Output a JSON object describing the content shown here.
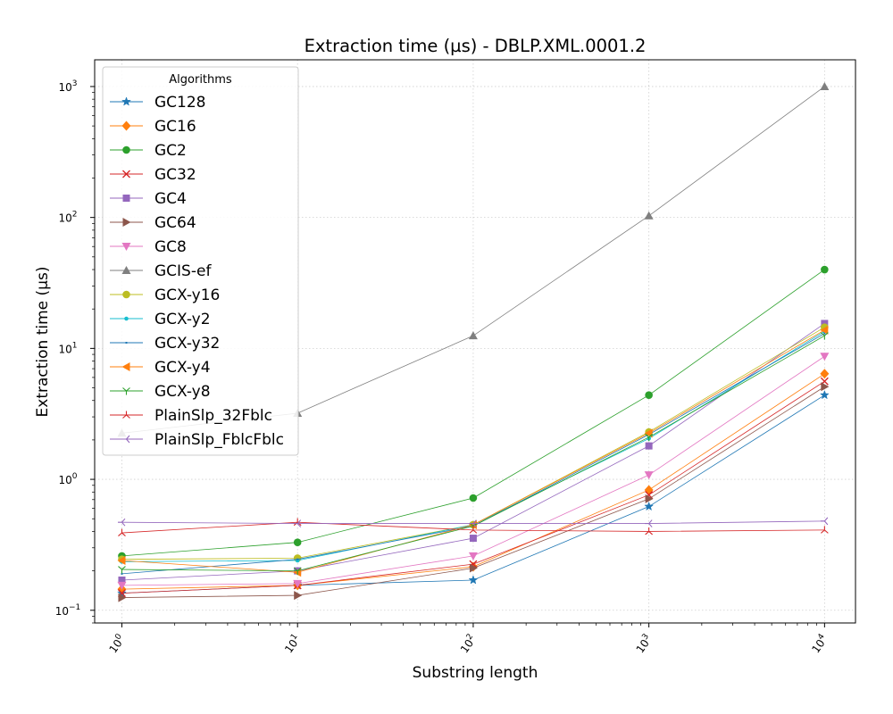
{
  "chart_data": {
    "type": "line",
    "title": "Extraction time (µs) - DBLP.XML.0001.2",
    "xlabel": "Substring length",
    "ylabel": "Extraction time (µs)",
    "xscale": "log",
    "yscale": "log",
    "xlim": [
      0.7,
      15000
    ],
    "ylim": [
      0.08,
      1600
    ],
    "grid": true,
    "legend_title": "Algorithms",
    "legend_position": "top-left",
    "x": [
      1,
      10,
      100,
      1000,
      10000
    ],
    "x_ticks": [
      {
        "value": 1,
        "base": "10",
        "exp": "0"
      },
      {
        "value": 10,
        "base": "10",
        "exp": "1"
      },
      {
        "value": 100,
        "base": "10",
        "exp": "2"
      },
      {
        "value": 1000,
        "base": "10",
        "exp": "3"
      },
      {
        "value": 10000,
        "base": "10",
        "exp": "4"
      }
    ],
    "y_ticks": [
      {
        "value": 0.1,
        "base": "10",
        "exp": "−1"
      },
      {
        "value": 1,
        "base": "10",
        "exp": "0"
      },
      {
        "value": 10,
        "base": "10",
        "exp": "1"
      },
      {
        "value": 100,
        "base": "10",
        "exp": "2"
      },
      {
        "value": 1000,
        "base": "10",
        "exp": "3"
      }
    ],
    "series": [
      {
        "name": "GC128",
        "color": "#1f77b4",
        "marker": "star",
        "values": [
          0.135,
          0.155,
          0.17,
          0.62,
          4.4
        ]
      },
      {
        "name": "GC16",
        "color": "#ff7f0e",
        "marker": "diamond",
        "values": [
          0.145,
          0.155,
          0.215,
          0.83,
          6.4
        ]
      },
      {
        "name": "GC2",
        "color": "#2ca02c",
        "marker": "circle",
        "values": [
          0.26,
          0.33,
          0.72,
          4.4,
          40
        ]
      },
      {
        "name": "GC32",
        "color": "#d62728",
        "marker": "x",
        "values": [
          0.135,
          0.155,
          0.225,
          0.76,
          5.6
        ]
      },
      {
        "name": "GC4",
        "color": "#9467bd",
        "marker": "square",
        "values": [
          0.17,
          0.2,
          0.355,
          1.8,
          15.5
        ]
      },
      {
        "name": "GC64",
        "color": "#8c564b",
        "marker": "triangle-right",
        "values": [
          0.125,
          0.13,
          0.21,
          0.71,
          5.1
        ]
      },
      {
        "name": "GC8",
        "color": "#e377c2",
        "marker": "triangle-down",
        "values": [
          0.155,
          0.16,
          0.26,
          1.08,
          8.7
        ]
      },
      {
        "name": "GCIS-ef",
        "color": "#7f7f7f",
        "marker": "triangle-up",
        "values": [
          2.25,
          3.2,
          12.5,
          103,
          1000
        ]
      },
      {
        "name": "GCX-y16",
        "color": "#bcbd22",
        "marker": "circle",
        "values": [
          0.245,
          0.25,
          0.45,
          2.3,
          14.5
        ]
      },
      {
        "name": "GCX-y2",
        "color": "#17becf",
        "marker": "point",
        "values": [
          0.235,
          0.24,
          0.45,
          2.05,
          13.5
        ]
      },
      {
        "name": "GCX-y32",
        "color": "#1f77b4",
        "marker": "pixel",
        "values": [
          0.19,
          0.245,
          0.44,
          2.2,
          13.0
        ]
      },
      {
        "name": "GCX-y4",
        "color": "#ff7f0e",
        "marker": "triangle-left",
        "values": [
          0.24,
          0.195,
          0.45,
          2.25,
          13.8
        ]
      },
      {
        "name": "GCX-y8",
        "color": "#2ca02c",
        "marker": "tri-down",
        "values": [
          0.205,
          0.2,
          0.44,
          2.1,
          12.5
        ]
      },
      {
        "name": "PlainSlp_32Fblc",
        "color": "#d62728",
        "marker": "tri-up",
        "values": [
          0.39,
          0.47,
          0.41,
          0.4,
          0.41
        ]
      },
      {
        "name": "PlainSlp_FblcFblc",
        "color": "#9467bd",
        "marker": "tri-left",
        "values": [
          0.47,
          0.46,
          0.46,
          0.46,
          0.48
        ]
      }
    ]
  }
}
